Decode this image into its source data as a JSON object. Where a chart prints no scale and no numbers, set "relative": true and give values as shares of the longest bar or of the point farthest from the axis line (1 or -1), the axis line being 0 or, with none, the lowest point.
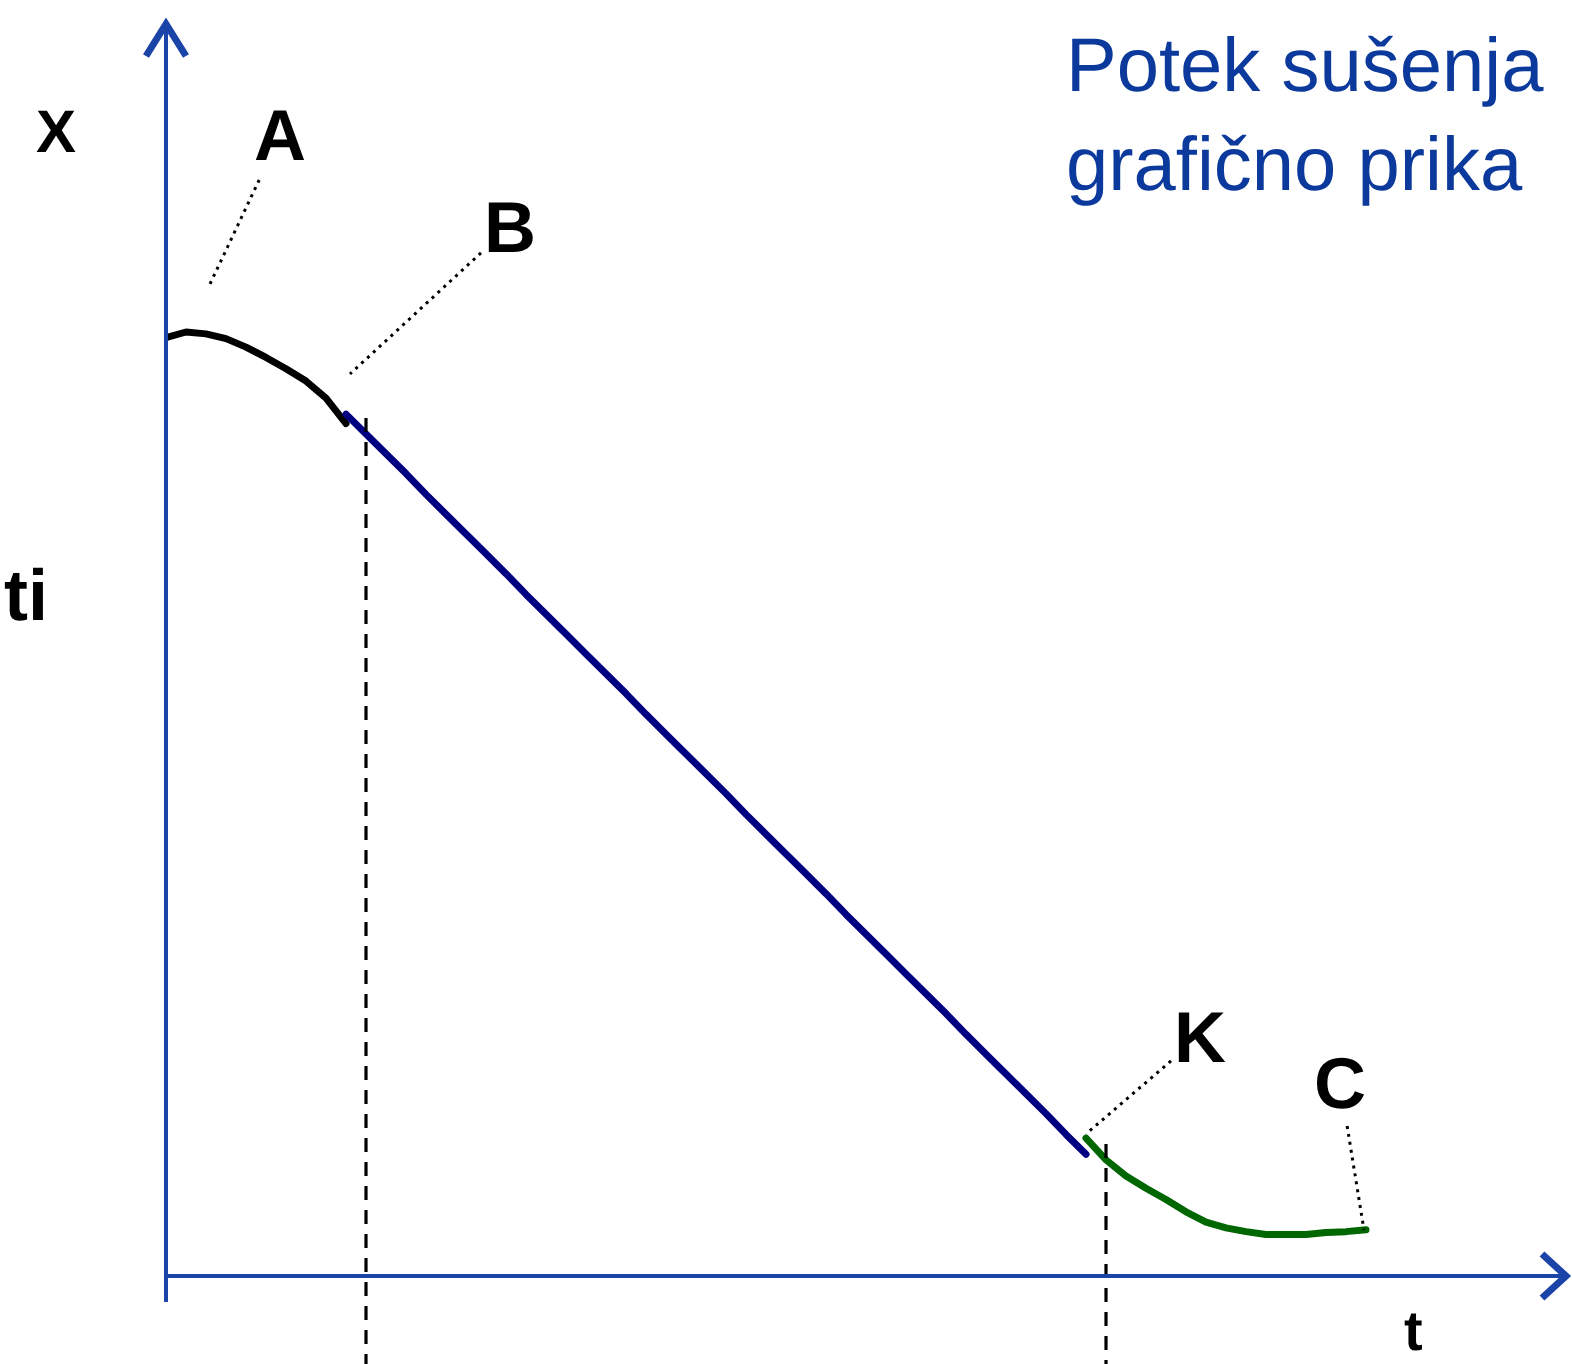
{
  "chart_data": {
    "type": "line",
    "title": "Potek sušenja\ngrafično prika",
    "xlabel": "t",
    "ylabel": "X",
    "relative": true,
    "marker": "none",
    "annotations": [
      "ti",
      "A",
      "B",
      "K",
      "C"
    ],
    "categories": [
      null,
      null,
      null,
      null,
      null,
      null,
      null,
      null,
      null,
      null,
      null,
      null,
      null,
      null,
      null,
      null,
      null,
      null,
      null,
      null,
      null,
      null,
      null,
      null,
      null,
      null,
      null,
      null,
      null,
      null,
      null,
      null,
      null,
      null,
      null,
      null,
      null,
      null,
      null,
      null,
      null,
      null,
      null,
      null,
      null,
      null,
      null,
      null,
      null,
      null,
      null,
      null,
      null,
      null,
      null,
      null,
      null,
      null,
      null,
      null,
      null
    ],
    "series": [
      {
        "color": "#000000",
        "values": [
          0.994,
          1,
          0.998,
          0.993,
          0.984,
          0.973,
          0.961,
          0.948,
          0.93,
          0.903,
          null,
          null,
          null,
          null,
          null,
          null,
          null,
          null,
          null,
          null,
          null,
          null,
          null,
          null,
          null,
          null,
          null,
          null,
          null,
          null,
          null,
          null,
          null,
          null,
          null,
          null,
          null,
          null,
          null,
          null,
          null,
          null,
          null,
          null,
          null,
          null,
          null,
          null,
          null,
          null,
          null,
          null,
          null,
          null,
          null,
          null,
          null,
          null,
          null,
          null,
          null
        ]
      },
      {
        "color": "#000080",
        "values": [
          null,
          null,
          null,
          null,
          null,
          null,
          null,
          null,
          null,
          0.913,
          0.892,
          0.871,
          0.85,
          0.828,
          0.807,
          0.786,
          0.765,
          0.744,
          0.722,
          0.701,
          0.68,
          0.659,
          0.638,
          0.617,
          0.595,
          0.574,
          0.553,
          0.532,
          0.511,
          0.489,
          0.468,
          0.447,
          0.426,
          0.405,
          0.383,
          0.362,
          0.341,
          0.32,
          0.299,
          0.278,
          0.256,
          0.235,
          0.214,
          0.193,
          0.172,
          0.15,
          0.129,
          null,
          null,
          null,
          null,
          null,
          null,
          null,
          null,
          null,
          null,
          null,
          null,
          null,
          null
        ]
      },
      {
        "color": "#006600",
        "values": [
          null,
          null,
          null,
          null,
          null,
          null,
          null,
          null,
          null,
          null,
          null,
          null,
          null,
          null,
          null,
          null,
          null,
          null,
          null,
          null,
          null,
          null,
          null,
          null,
          null,
          null,
          null,
          null,
          null,
          null,
          null,
          null,
          null,
          null,
          null,
          null,
          null,
          null,
          null,
          null,
          null,
          null,
          null,
          null,
          null,
          null,
          0.146,
          0.123,
          0.106,
          0.093,
          0.081,
          0.068,
          0.057,
          0.051,
          0.047,
          0.044,
          0.044,
          0.044,
          0.046,
          0.047,
          0.049
        ]
      }
    ]
  }
}
